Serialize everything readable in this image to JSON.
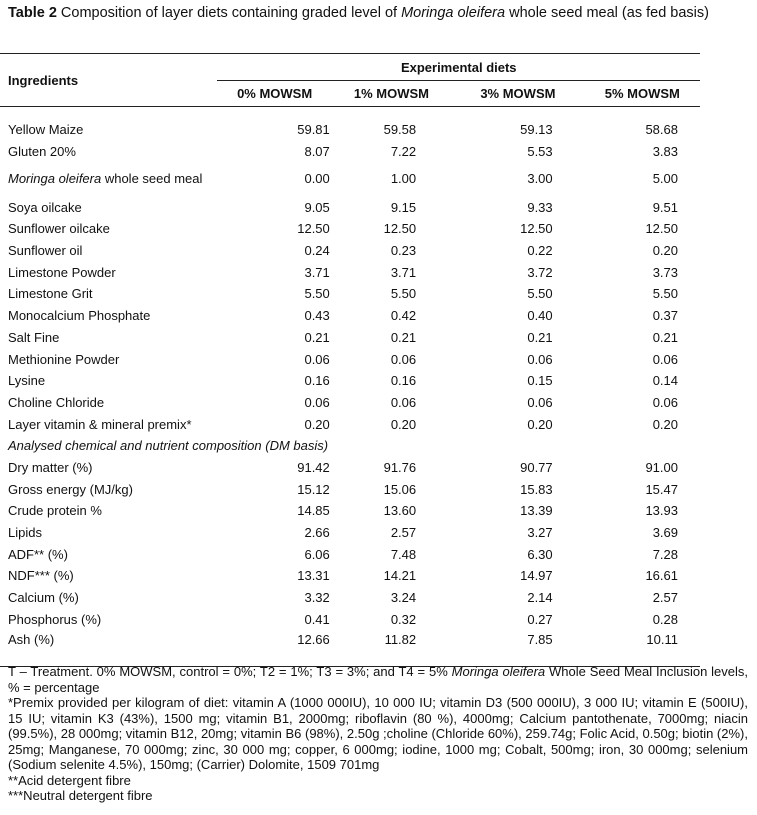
{
  "title": {
    "label": "Table 2",
    "text_a": "Composition of layer diets containing graded level of ",
    "text_italic": "Moringa oleifera",
    "text_b": " whole seed meal (as fed basis)"
  },
  "table": {
    "ingredients_header": "Ingredients",
    "group_header": "Experimental diets",
    "columns": [
      "0% MOWSM",
      "1% MOWSM",
      "3% MOWSM",
      "5% MOWSM"
    ],
    "rows": [
      {
        "name": "Yellow Maize",
        "values": [
          "59.81",
          "59.58",
          "59.13",
          "58.68"
        ]
      },
      {
        "name": "Gluten 20%",
        "values": [
          "8.07",
          "7.22",
          "5.53",
          "3.83"
        ]
      },
      {
        "name_italic": "Moringa oleifera",
        "name": " whole seed meal",
        "values": [
          "0.00",
          "1.00",
          "3.00",
          "5.00"
        ]
      },
      {
        "name": "Soya oilcake",
        "values": [
          "9.05",
          "9.15",
          "9.33",
          "9.51"
        ]
      },
      {
        "name": "Sunflower oilcake",
        "values": [
          "12.50",
          "12.50",
          "12.50",
          "12.50"
        ]
      },
      {
        "name": "Sunflower oil",
        "values": [
          "0.24",
          "0.23",
          "0.22",
          "0.20"
        ]
      },
      {
        "name": "Limestone Powder",
        "values": [
          "3.71",
          "3.71",
          "3.72",
          "3.73"
        ]
      },
      {
        "name": "Limestone Grit",
        "values": [
          "5.50",
          "5.50",
          "5.50",
          "5.50"
        ]
      },
      {
        "name": "Monocalcium Phosphate",
        "values": [
          "0.43",
          "0.42",
          "0.40",
          "0.37"
        ]
      },
      {
        "name": "Salt Fine",
        "values": [
          "0.21",
          "0.21",
          "0.21",
          "0.21"
        ]
      },
      {
        "name": "Methionine Powder",
        "values": [
          "0.06",
          "0.06",
          "0.06",
          "0.06"
        ]
      },
      {
        "name": "Lysine",
        "values": [
          "0.16",
          "0.16",
          "0.15",
          "0.14"
        ]
      },
      {
        "name": "Choline Chloride",
        "values": [
          "0.06",
          "0.06",
          "0.06",
          "0.06"
        ]
      },
      {
        "name": "Layer vitamin & mineral premix*",
        "values": [
          "0.20",
          "0.20",
          "0.20",
          "0.20"
        ]
      }
    ],
    "section_label": "Analysed chemical and nutrient composition (DM basis)",
    "analysis_rows": [
      {
        "name": "Dry matter (%)",
        "values": [
          "91.42",
          "91.76",
          "90.77",
          "91.00"
        ]
      },
      {
        "name": "Gross energy (MJ/kg)",
        "values": [
          "15.12",
          "15.06",
          "15.83",
          "15.47"
        ]
      },
      {
        "name": "Crude protein %",
        "values": [
          "14.85",
          "13.60",
          "13.39",
          "13.93"
        ]
      },
      {
        "name": "Lipids",
        "values": [
          "2.66",
          "2.57",
          "3.27",
          "3.69"
        ]
      },
      {
        "name": "ADF** (%)",
        "values": [
          "6.06",
          "7.48",
          "6.30",
          "7.28"
        ]
      },
      {
        "name": "NDF*** (%)",
        "values": [
          "13.31",
          "14.21",
          "14.97",
          "16.61"
        ]
      },
      {
        "name": "Calcium (%)",
        "values": [
          "3.32",
          "3.24",
          "2.14",
          "2.57"
        ]
      },
      {
        "name": "Phosphorus (%)",
        "values": [
          "0.41",
          "0.32",
          "0.27",
          "0.28"
        ]
      },
      {
        "name": "Ash (%)",
        "values": [
          "12.66",
          "11.82",
          "7.85",
          "10.11"
        ]
      }
    ]
  },
  "footnotes": {
    "treatment_a": "T – Treatment. 0% MOWSM, control = 0%; T2 = 1%; T3 = 3%; and T4 = 5% ",
    "treatment_italic": "Moringa oleifera",
    "treatment_b": " Whole Seed Meal Inclusion levels, % = percentage",
    "premix": "*Premix provided per kilogram of diet: vitamin A (1000 000IU), 10 000 IU; vitamin D3 (500 000IU), 3 000 IU; vitamin E (500IU), 15 IU; vitamin K3 (43%), 1500 mg; vitamin B1, 2000mg; riboflavin (80 %), 4000mg; Calcium pantothenate, 7000mg; niacin (99.5%), 28 000mg; vitamin B12, 20mg; vitamin B6 (98%), 2.50g ;choline (Chloride 60%), 259.74g; Folic Acid, 0.50g; biotin (2%), 25mg; Manganese, 70 000mg; zinc, 30 000 mg; copper, 6 000mg; iodine, 1000 mg; Cobalt, 500mg; iron, 30 000mg; selenium (Sodium selenite 4.5%), 150mg; (Carrier) Dolomite, 1509 701mg",
    "adf": "**Acid detergent fibre",
    "ndf": "***Neutral detergent fibre"
  }
}
